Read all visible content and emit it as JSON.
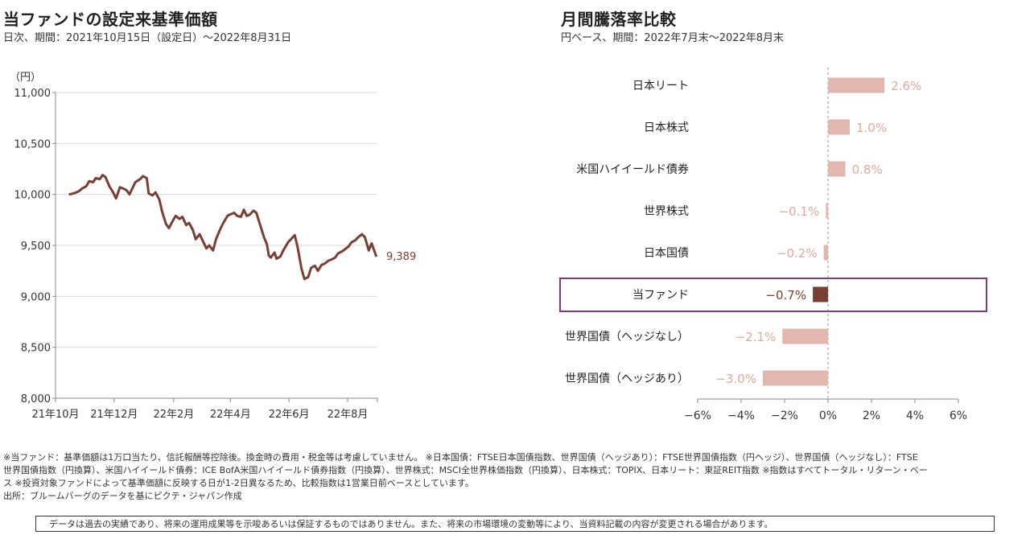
{
  "left_chart": {
    "title": "当ファンドの設定来基準価額",
    "subtitle": "日次、期間：2021年10月15日（設定日）～2022年8月31日",
    "unit_label": "（円）",
    "last_value_label": "9,389"
  },
  "right_chart": {
    "title": "月間騰落率比較",
    "subtitle": "円ベース、期間：2022年7月末～2022年8月末"
  },
  "footnotes": {
    "line1": "※当ファンド：基準価額は1万口当たり、信託報酬等控除後。換金時の費用・税金等は考慮していません。 ※日本国債：FTSE日本国債指数、世界国債（ヘッジあり）：FTSE世界国債指数（円ヘッジ）、世界国債（ヘッジなし）：FTSE",
    "line2": "世界国債指数（円換算）、米国ハイイールド債券：ICE BofA米国ハイイールド債券指数（円換算）、世界株式：MSCI全世界株価指数（円換算）、日本株式：TOPIX、日本リート：東証REIT指数 ※指数はすべてトータル・リターン・ベー",
    "line3": "ス ※投資対象ファンドによって基準価額に反映する日が1-2日異なるため、比較指数は1営業日前ベースとしています。",
    "line4": "出所：ブルームバーグのデータを基にピクテ・ジャパン作成"
  },
  "disclaimer": "データは過去の実績であり、将来の運用成果等を示唆あるいは保証するものではありません。また、将来の市場環境の変動等により、当資料記載の内容が変更される場合があります。",
  "chart_data": [
    {
      "type": "line",
      "title": "当ファンドの設定来基準価額",
      "ylabel": "（円）",
      "ylim": [
        8000,
        11000
      ],
      "yticks": [
        "8,000",
        "8,500",
        "9,000",
        "9,500",
        "10,000",
        "10,500",
        "11,000"
      ],
      "ytick_values": [
        8000,
        8500,
        9000,
        9500,
        10000,
        10500,
        11000
      ],
      "xticks": [
        "21年10月",
        "21年12月",
        "22年2月",
        "22年4月",
        "22年6月",
        "22年8月"
      ],
      "xtick_dates": [
        "2021-10-01",
        "2021-12-01",
        "2022-02-01",
        "2022-04-01",
        "2022-06-01",
        "2022-08-01"
      ],
      "xlim": [
        "2021-10-01",
        "2022-09-01"
      ],
      "grid": "horizontal",
      "color": "#7a3f33",
      "series": [
        {
          "points": [
            [
              "2021-10-15",
              10000
            ],
            [
              "2021-10-20",
              10010
            ],
            [
              "2021-10-25",
              10030
            ],
            [
              "2021-10-29",
              10060
            ],
            [
              "2021-11-02",
              10080
            ],
            [
              "2021-11-05",
              10130
            ],
            [
              "2021-11-09",
              10120
            ],
            [
              "2021-11-12",
              10160
            ],
            [
              "2021-11-16",
              10150
            ],
            [
              "2021-11-19",
              10190
            ],
            [
              "2021-11-22",
              10170
            ],
            [
              "2021-11-26",
              10080
            ],
            [
              "2021-11-30",
              10020
            ],
            [
              "2021-12-03",
              9960
            ],
            [
              "2021-12-07",
              10070
            ],
            [
              "2021-12-10",
              10060
            ],
            [
              "2021-12-14",
              10040
            ],
            [
              "2021-12-17",
              10000
            ],
            [
              "2021-12-20",
              10060
            ],
            [
              "2021-12-23",
              10120
            ],
            [
              "2021-12-28",
              10150
            ],
            [
              "2021-12-31",
              10180
            ],
            [
              "2022-01-04",
              10160
            ],
            [
              "2022-01-06",
              10010
            ],
            [
              "2022-01-10",
              9990
            ],
            [
              "2022-01-13",
              10020
            ],
            [
              "2022-01-17",
              9950
            ],
            [
              "2022-01-20",
              9830
            ],
            [
              "2022-01-24",
              9710
            ],
            [
              "2022-01-27",
              9670
            ],
            [
              "2022-01-31",
              9740
            ],
            [
              "2022-02-03",
              9790
            ],
            [
              "2022-02-07",
              9760
            ],
            [
              "2022-02-10",
              9780
            ],
            [
              "2022-02-14",
              9700
            ],
            [
              "2022-02-17",
              9720
            ],
            [
              "2022-02-21",
              9650
            ],
            [
              "2022-02-24",
              9560
            ],
            [
              "2022-02-28",
              9610
            ],
            [
              "2022-03-03",
              9550
            ],
            [
              "2022-03-07",
              9470
            ],
            [
              "2022-03-10",
              9500
            ],
            [
              "2022-03-14",
              9450
            ],
            [
              "2022-03-17",
              9560
            ],
            [
              "2022-03-21",
              9650
            ],
            [
              "2022-03-24",
              9710
            ],
            [
              "2022-03-29",
              9790
            ],
            [
              "2022-03-31",
              9800
            ],
            [
              "2022-04-05",
              9820
            ],
            [
              "2022-04-08",
              9790
            ],
            [
              "2022-04-12",
              9780
            ],
            [
              "2022-04-15",
              9850
            ],
            [
              "2022-04-18",
              9790
            ],
            [
              "2022-04-21",
              9800
            ],
            [
              "2022-04-25",
              9840
            ],
            [
              "2022-04-28",
              9820
            ],
            [
              "2022-05-02",
              9700
            ],
            [
              "2022-05-06",
              9580
            ],
            [
              "2022-05-09",
              9510
            ],
            [
              "2022-05-11",
              9400
            ],
            [
              "2022-05-13",
              9380
            ],
            [
              "2022-05-17",
              9430
            ],
            [
              "2022-05-19",
              9370
            ],
            [
              "2022-05-23",
              9390
            ],
            [
              "2022-05-26",
              9450
            ],
            [
              "2022-05-31",
              9530
            ],
            [
              "2022-06-03",
              9560
            ],
            [
              "2022-06-07",
              9600
            ],
            [
              "2022-06-10",
              9480
            ],
            [
              "2022-06-14",
              9270
            ],
            [
              "2022-06-17",
              9170
            ],
            [
              "2022-06-21",
              9190
            ],
            [
              "2022-06-24",
              9280
            ],
            [
              "2022-06-28",
              9300
            ],
            [
              "2022-07-01",
              9250
            ],
            [
              "2022-07-05",
              9310
            ],
            [
              "2022-07-08",
              9320
            ],
            [
              "2022-07-12",
              9350
            ],
            [
              "2022-07-15",
              9360
            ],
            [
              "2022-07-19",
              9380
            ],
            [
              "2022-07-22",
              9420
            ],
            [
              "2022-07-26",
              9440
            ],
            [
              "2022-07-29",
              9460
            ],
            [
              "2022-08-02",
              9490
            ],
            [
              "2022-08-05",
              9530
            ],
            [
              "2022-08-09",
              9550
            ],
            [
              "2022-08-12",
              9580
            ],
            [
              "2022-08-16",
              9610
            ],
            [
              "2022-08-19",
              9580
            ],
            [
              "2022-08-23",
              9450
            ],
            [
              "2022-08-26",
              9520
            ],
            [
              "2022-08-31",
              9389
            ]
          ]
        }
      ]
    },
    {
      "type": "bar",
      "orientation": "horizontal",
      "title": "月間騰落率比較",
      "xlim": [
        -6,
        6
      ],
      "xticks": [
        "−6%",
        "−4%",
        "−2%",
        "0%",
        "2%",
        "4%",
        "6%"
      ],
      "xtick_values": [
        -6,
        -4,
        -2,
        0,
        2,
        4,
        6
      ],
      "categories": [
        "日本リート",
        "日本株式",
        "米国ハイイールド債券",
        "世界株式",
        "日本国債",
        "当ファンド",
        "世界国債（ヘッジなし）",
        "世界国債（ヘッジあり）"
      ],
      "values": [
        2.6,
        1.0,
        0.8,
        -0.1,
        -0.2,
        -0.7,
        -2.1,
        -3.0
      ],
      "value_labels": [
        "2.6%",
        "1.0%",
        "0.8%",
        "−0.1%",
        "−0.2%",
        "−0.7%",
        "−2.1%",
        "−3.0%"
      ],
      "highlight": "当ファンド",
      "colors": {
        "bar": "#e2b7b0",
        "highlight_bar": "#7a3f33",
        "highlight_box": "#7b3b7d",
        "label": "#e2a89e",
        "highlight_label": "#7a3f33"
      }
    }
  ]
}
